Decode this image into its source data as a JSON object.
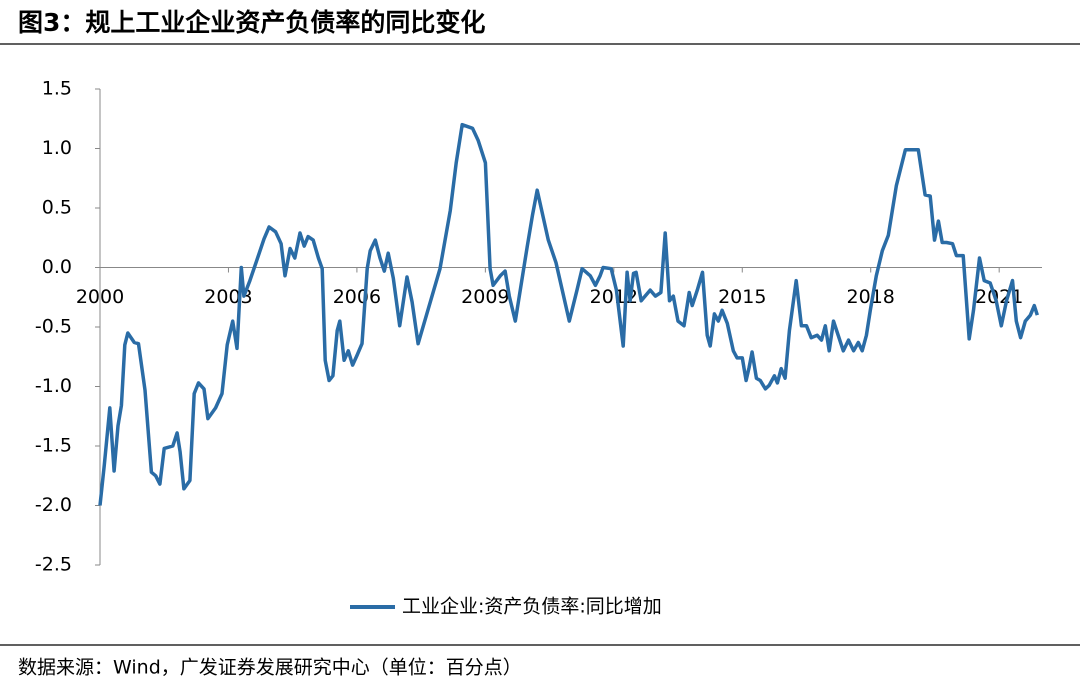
{
  "chart_data": {
    "type": "line",
    "title": "图3：规上工业企业资产负债率的同比变化",
    "source": "数据来源：Wind，广发证券发展研究中心（单位：百分点）",
    "xlim": [
      2000,
      2022
    ],
    "xticks": [
      2000,
      2003,
      2006,
      2009,
      2012,
      2015,
      2018,
      2021
    ],
    "ylim": [
      -2.5,
      1.5
    ],
    "yticks": [
      1.5,
      {
        "value": 1,
        "label": "1.0"
      },
      0.5,
      {
        "value": 0,
        "label": "0.0"
      },
      -0.5,
      {
        "value": -1,
        "label": "-1.0"
      },
      -1.5,
      {
        "value": -2,
        "label": "-2.0"
      },
      -2.5
    ],
    "legend": "bottom",
    "x": [
      2000.0,
      2000.1,
      2000.23,
      2000.33,
      2000.42,
      2000.5,
      2000.58,
      2000.65,
      2000.8,
      2000.9,
      2001.05,
      2001.2,
      2001.3,
      2001.4,
      2001.5,
      2001.7,
      2001.8,
      2001.87,
      2001.96,
      2002.1,
      2002.2,
      2002.3,
      2002.43,
      2002.52,
      2002.7,
      2002.85,
      2002.97,
      2003.1,
      2003.2,
      2003.3,
      2003.36,
      2003.5,
      2003.7,
      2003.83,
      2003.95,
      2004.1,
      2004.23,
      2004.32,
      2004.44,
      2004.55,
      2004.67,
      2004.77,
      2004.86,
      2004.98,
      2005.1,
      2005.19,
      2005.26,
      2005.35,
      2005.44,
      2005.54,
      2005.6,
      2005.7,
      2005.8,
      2005.9,
      2006.0,
      2006.12,
      2006.24,
      2006.31,
      2006.43,
      2006.54,
      2006.64,
      2006.73,
      2006.85,
      2007.0,
      2007.17,
      2007.29,
      2007.43,
      2007.94,
      2008.18,
      2008.32,
      2008.46,
      2008.7,
      2008.83,
      2009.0,
      2009.11,
      2009.18,
      2009.35,
      2009.46,
      2009.56,
      2009.7,
      2009.98,
      2010.1,
      2010.21,
      2010.47,
      2010.65,
      2010.96,
      2011.14,
      2011.26,
      2011.45,
      2011.57,
      2011.68,
      2011.75,
      2011.94,
      2012.06,
      2012.22,
      2012.31,
      2012.38,
      2012.46,
      2012.52,
      2012.64,
      2012.73,
      2012.85,
      2012.97,
      2013.1,
      2013.2,
      2013.3,
      2013.39,
      2013.5,
      2013.64,
      2013.76,
      2013.83,
      2013.95,
      2014.07,
      2014.18,
      2014.25,
      2014.35,
      2014.44,
      2014.53,
      2014.65,
      2014.79,
      2014.88,
      2015.0,
      2015.09,
      2015.16,
      2015.23,
      2015.33,
      2015.42,
      2015.54,
      2015.63,
      2015.75,
      2015.82,
      2015.91,
      2016.0,
      2016.1,
      2016.26,
      2016.38,
      2016.5,
      2016.61,
      2016.75,
      2016.85,
      2016.94,
      2017.03,
      2017.13,
      2017.24,
      2017.36,
      2017.48,
      2017.6,
      2017.71,
      2017.8,
      2017.9,
      2017.99,
      2018.13,
      2018.27,
      2018.41,
      2018.6,
      2018.81,
      2019.11,
      2019.27,
      2019.39,
      2019.49,
      2019.58,
      2019.67,
      2019.77,
      2019.91,
      2020.0,
      2020.16,
      2020.3,
      2020.4,
      2020.54,
      2020.65,
      2020.79,
      2020.93,
      2021.05,
      2021.17,
      2021.31,
      2021.4,
      2021.5,
      2021.61,
      2021.73,
      2021.82,
      2021.89
    ],
    "series": [
      {
        "name": "工业企业:资产负债率:同比增加",
        "color": "#2a6ca6",
        "values": [
          -2.0,
          -1.66,
          -1.18,
          -1.71,
          -1.33,
          -1.16,
          -0.65,
          -0.55,
          -0.63,
          -0.64,
          -1.03,
          -1.72,
          -1.75,
          -1.82,
          -1.52,
          -1.5,
          -1.39,
          -1.55,
          -1.86,
          -1.79,
          -1.06,
          -0.97,
          -1.02,
          -1.27,
          -1.18,
          -1.06,
          -0.65,
          -0.45,
          -0.68,
          0.0,
          -0.24,
          -0.11,
          0.1,
          0.24,
          0.34,
          0.3,
          0.2,
          -0.07,
          0.16,
          0.08,
          0.29,
          0.18,
          0.26,
          0.23,
          0.08,
          -0.01,
          -0.78,
          -0.95,
          -0.91,
          -0.53,
          -0.45,
          -0.78,
          -0.7,
          -0.82,
          -0.74,
          -0.64,
          -0.01,
          0.14,
          0.23,
          0.08,
          -0.03,
          0.12,
          -0.09,
          -0.49,
          -0.08,
          -0.29,
          -0.64,
          -0.01,
          0.48,
          0.88,
          1.2,
          1.17,
          1.07,
          0.88,
          -0.01,
          -0.15,
          -0.07,
          -0.03,
          -0.24,
          -0.45,
          0.18,
          0.44,
          0.65,
          0.23,
          0.04,
          -0.45,
          -0.19,
          -0.01,
          -0.07,
          -0.15,
          -0.07,
          0.0,
          -0.01,
          -0.19,
          -0.66,
          -0.04,
          -0.28,
          -0.05,
          -0.04,
          -0.28,
          -0.24,
          -0.19,
          -0.24,
          -0.21,
          0.29,
          -0.28,
          -0.24,
          -0.45,
          -0.49,
          -0.21,
          -0.32,
          -0.19,
          -0.04,
          -0.57,
          -0.66,
          -0.39,
          -0.45,
          -0.36,
          -0.47,
          -0.7,
          -0.76,
          -0.76,
          -0.95,
          -0.84,
          -0.71,
          -0.93,
          -0.95,
          -1.02,
          -0.99,
          -0.91,
          -0.97,
          -0.85,
          -0.93,
          -0.53,
          -0.11,
          -0.49,
          -0.49,
          -0.59,
          -0.57,
          -0.61,
          -0.49,
          -0.7,
          -0.45,
          -0.57,
          -0.7,
          -0.61,
          -0.7,
          -0.63,
          -0.7,
          -0.57,
          -0.36,
          -0.07,
          0.14,
          0.27,
          0.69,
          0.99,
          0.99,
          0.61,
          0.6,
          0.23,
          0.39,
          0.21,
          0.21,
          0.2,
          0.1,
          0.1,
          -0.6,
          -0.36,
          0.08,
          -0.11,
          -0.13,
          -0.28,
          -0.49,
          -0.28,
          -0.11,
          -0.45,
          -0.59,
          -0.45,
          -0.4,
          -0.32,
          -0.4
        ]
      }
    ]
  }
}
